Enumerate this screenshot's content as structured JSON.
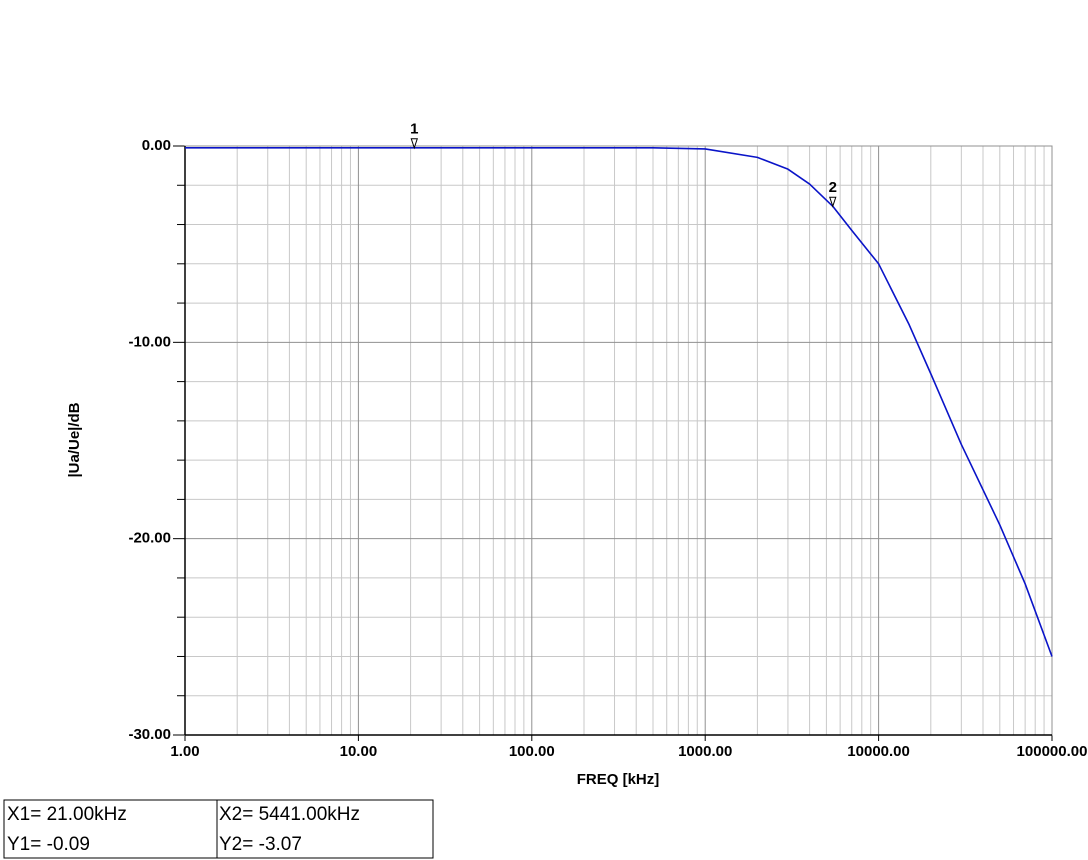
{
  "chart_data": {
    "type": "line",
    "x_label": "FREQ [kHz]",
    "y_label": "|Ua/Ue|/dB",
    "log_x": true,
    "grid": true,
    "x": [
      1,
      10,
      100,
      500,
      1000,
      2000,
      3000,
      4000,
      5441,
      7000,
      10000,
      15000,
      20000,
      30000,
      50000,
      70000,
      100000
    ],
    "series": [
      {
        "color": "#0a14c8",
        "values": [
          -0.09,
          -0.09,
          -0.09,
          -0.09,
          -0.15,
          -0.58,
          -1.18,
          -1.94,
          -3.07,
          -4.3,
          -6.0,
          -9.1,
          -11.6,
          -15.2,
          -19.3,
          -22.3,
          -26.0
        ]
      }
    ],
    "xlim": [
      1,
      100000
    ],
    "ylim": [
      -30,
      0
    ],
    "xticks": [
      {
        "value": 1,
        "label": "1.00"
      },
      {
        "value": 10,
        "label": "10.00"
      },
      {
        "value": 100,
        "label": "100.00"
      },
      {
        "value": 1000,
        "label": "1000.00"
      },
      {
        "value": 10000,
        "label": "10000.00"
      },
      {
        "value": 100000,
        "label": "100000.00"
      }
    ],
    "x_minor_ticks": [
      2,
      3,
      4,
      5,
      6,
      7,
      8,
      9,
      20,
      30,
      40,
      50,
      60,
      70,
      80,
      90,
      200,
      300,
      400,
      500,
      600,
      700,
      800,
      900,
      2000,
      3000,
      4000,
      5000,
      6000,
      7000,
      8000,
      9000,
      20000,
      30000,
      40000,
      50000,
      60000,
      70000,
      80000,
      90000
    ],
    "yticks": [
      {
        "value": 0,
        "label": "0.00"
      },
      {
        "value": -10,
        "label": "-10.00"
      },
      {
        "value": -20,
        "label": "-20.00"
      },
      {
        "value": -30,
        "label": "-30.00"
      }
    ],
    "y_minor_ticks": [
      -2,
      -4,
      -6,
      -8,
      -12,
      -14,
      -16,
      -18,
      -22,
      -24,
      -26,
      -28
    ],
    "markers": [
      {
        "label": "1",
        "x": 21,
        "y": -0.09
      },
      {
        "label": "2",
        "x": 5441,
        "y": -3.07
      }
    ],
    "cursor_table": [
      [
        "X1= 21.00kHz",
        "X2= 5441.00kHz"
      ],
      [
        "Y1= -0.09",
        "Y2= -3.07"
      ]
    ]
  }
}
